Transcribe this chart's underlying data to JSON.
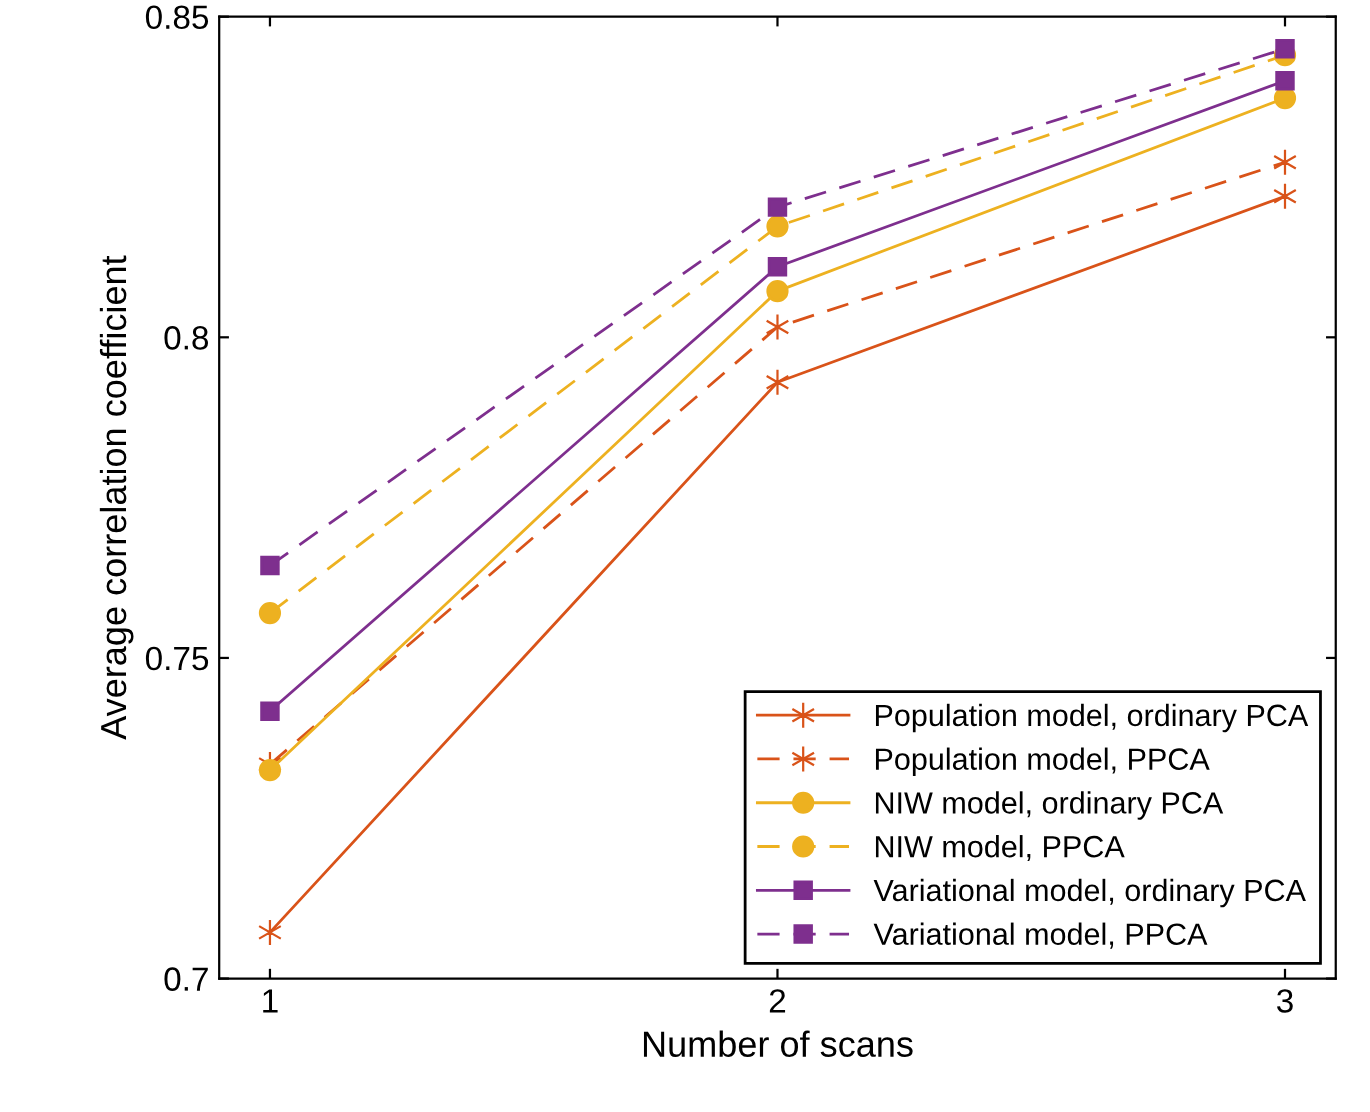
{
  "chart_data": {
    "type": "line",
    "xlabel": "Number of scans",
    "ylabel": "Average correlation coefficient",
    "x": [
      1,
      2,
      3
    ],
    "xlim": [
      0.9,
      3.1
    ],
    "xticks": [
      1,
      2,
      3
    ],
    "ylim": [
      0.7,
      0.85
    ],
    "yticks": [
      0.7,
      0.75,
      0.8,
      0.85
    ],
    "grid": false,
    "legend": "bottom right",
    "series": [
      {
        "name": "Population model, ordinary PCA",
        "color": "#d95319",
        "marker": "cross",
        "line_style": "solid",
        "values": [
          0.7072,
          0.793,
          0.822
        ]
      },
      {
        "name": "Population model, PPCA",
        "color": "#d95319",
        "marker": "cross",
        "line_style": "dashed",
        "values": [
          0.7334,
          0.8016,
          0.8273
        ]
      },
      {
        "name": "NIW model, ordinary PCA",
        "color": "#edb120",
        "marker": "circle",
        "line_style": "solid",
        "values": [
          0.7325,
          0.8072,
          0.8373
        ]
      },
      {
        "name": "NIW model, PPCA",
        "color": "#edb120",
        "marker": "circle",
        "line_style": "dashed",
        "values": [
          0.757,
          0.8173,
          0.844
        ]
      },
      {
        "name": "Variational model, ordinary PCA",
        "color": "#7e2f8e",
        "marker": "square",
        "line_style": "solid",
        "values": [
          0.7417,
          0.811,
          0.84
        ]
      },
      {
        "name": "Variational model, PPCA",
        "color": "#7e2f8e",
        "marker": "square",
        "line_style": "dashed",
        "values": [
          0.7644,
          0.8203,
          0.845
        ]
      }
    ]
  }
}
